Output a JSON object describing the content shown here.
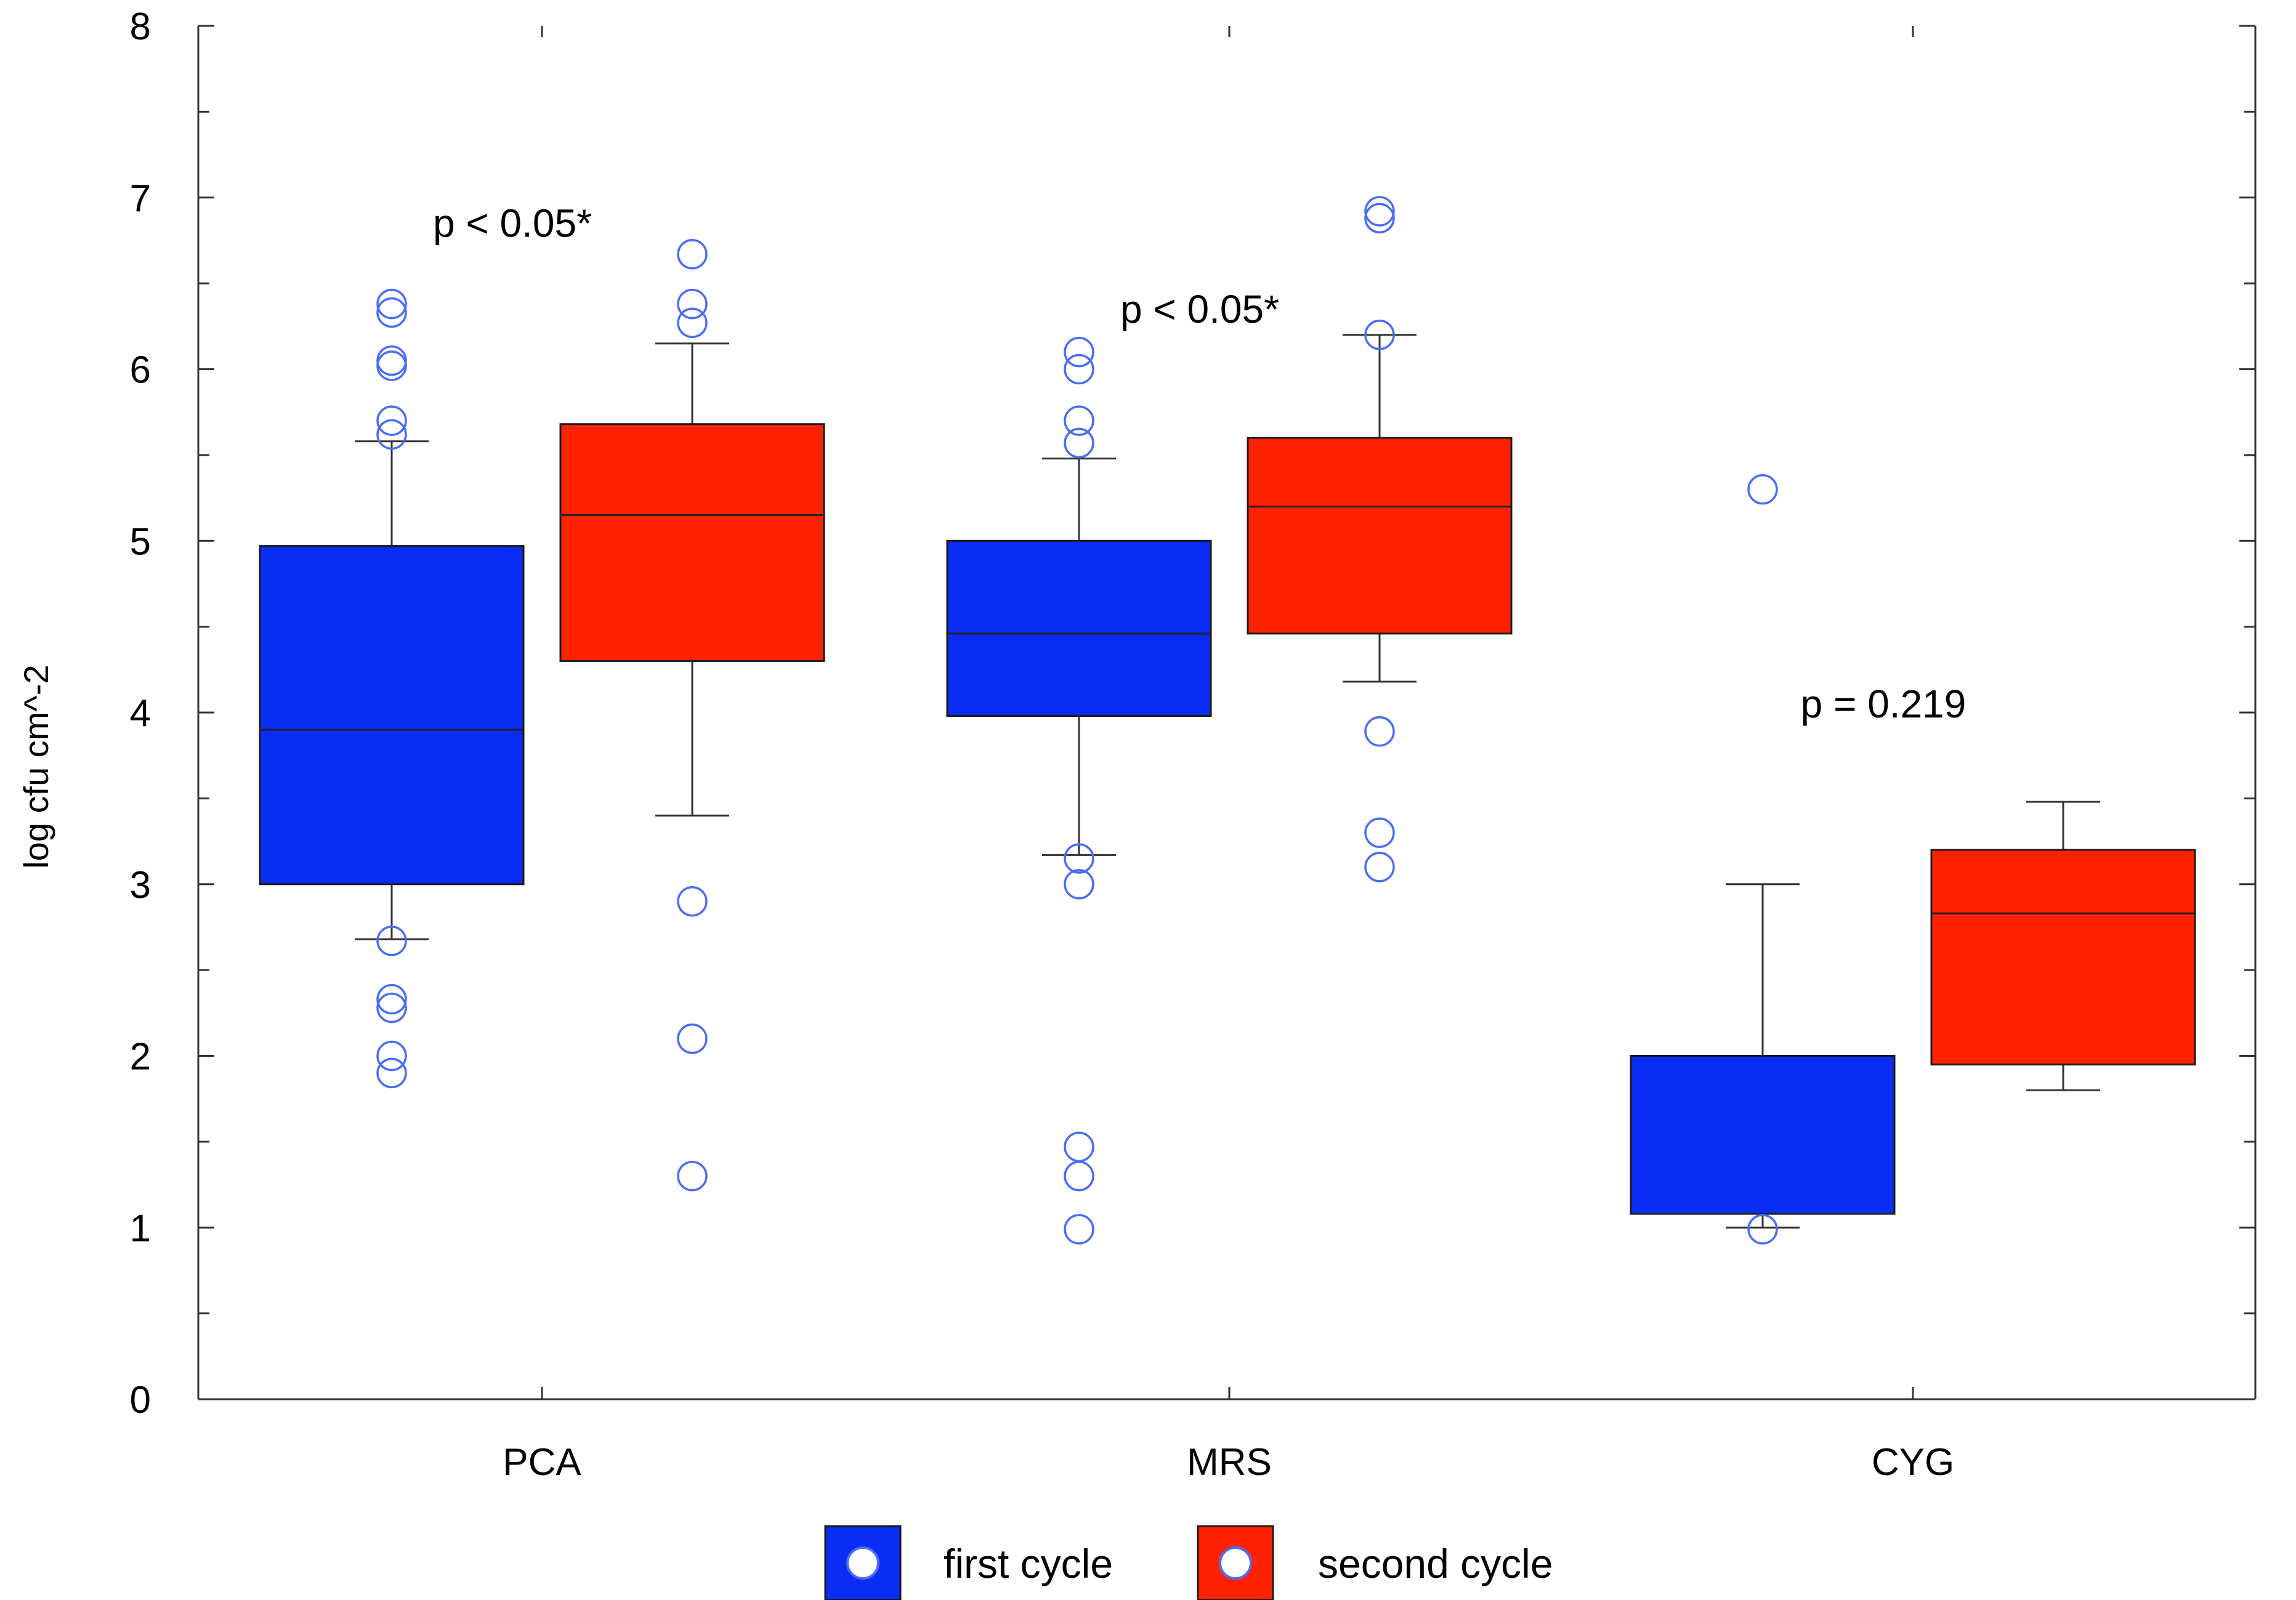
{
  "chart_data": {
    "type": "box",
    "title": "",
    "xlabel": "",
    "ylabel": "log cfu cm^-2",
    "ylim": [
      0,
      8
    ],
    "yticks": [
      0,
      1,
      2,
      3,
      4,
      5,
      6,
      7,
      8
    ],
    "categories": [
      "PCA",
      "MRS",
      "CYG"
    ],
    "series": [
      {
        "name": "first cycle",
        "color": "#0b2cf5",
        "boxes": [
          {
            "category": "PCA",
            "whisker_low": 2.68,
            "q1": 3.0,
            "median": 3.9,
            "q3": 4.97,
            "whisker_high": 5.58,
            "outliers": [
              6.38,
              6.33,
              6.05,
              6.02,
              5.7,
              5.62,
              2.67,
              2.33,
              2.28,
              2.0,
              1.9
            ]
          },
          {
            "category": "MRS",
            "whisker_low": 3.17,
            "q1": 3.98,
            "median": 4.46,
            "q3": 5.0,
            "whisker_high": 5.48,
            "outliers": [
              6.1,
              6.0,
              5.7,
              5.57,
              3.15,
              3.0,
              1.47,
              1.3,
              0.99
            ]
          },
          {
            "category": "CYG",
            "whisker_low": 1.0,
            "q1": 1.08,
            "median": 1.08,
            "q3": 2.0,
            "whisker_high": 3.0,
            "outliers": [
              5.3,
              0.99
            ]
          }
        ]
      },
      {
        "name": "second cycle",
        "color": "#ff2200",
        "boxes": [
          {
            "category": "PCA",
            "whisker_low": 3.4,
            "q1": 4.3,
            "median": 5.15,
            "q3": 5.68,
            "whisker_high": 6.15,
            "outliers": [
              6.67,
              6.38,
              6.27,
              2.9,
              2.1,
              1.3
            ]
          },
          {
            "category": "MRS",
            "whisker_low": 4.18,
            "q1": 4.46,
            "median": 5.2,
            "q3": 5.6,
            "whisker_high": 6.2,
            "outliers": [
              6.92,
              6.88,
              6.2,
              3.89,
              3.3,
              3.1
            ]
          },
          {
            "category": "CYG",
            "whisker_low": 1.8,
            "q1": 1.95,
            "median": 2.83,
            "q3": 3.2,
            "whisker_high": 3.48,
            "outliers": []
          }
        ]
      }
    ],
    "annotations": [
      {
        "category": "PCA",
        "text": "p < 0.05*",
        "y": 6.85
      },
      {
        "category": "MRS",
        "text": "p < 0.05*",
        "y": 6.35
      },
      {
        "category": "CYG",
        "text": "p = 0.219",
        "y": 4.05
      }
    ],
    "outlier_color": "#4a6cf7",
    "legend": {
      "position": "bottom-center",
      "entries": [
        {
          "label": "first cycle",
          "color": "#0b2cf5"
        },
        {
          "label": "second cycle",
          "color": "#ff2200"
        }
      ]
    }
  }
}
